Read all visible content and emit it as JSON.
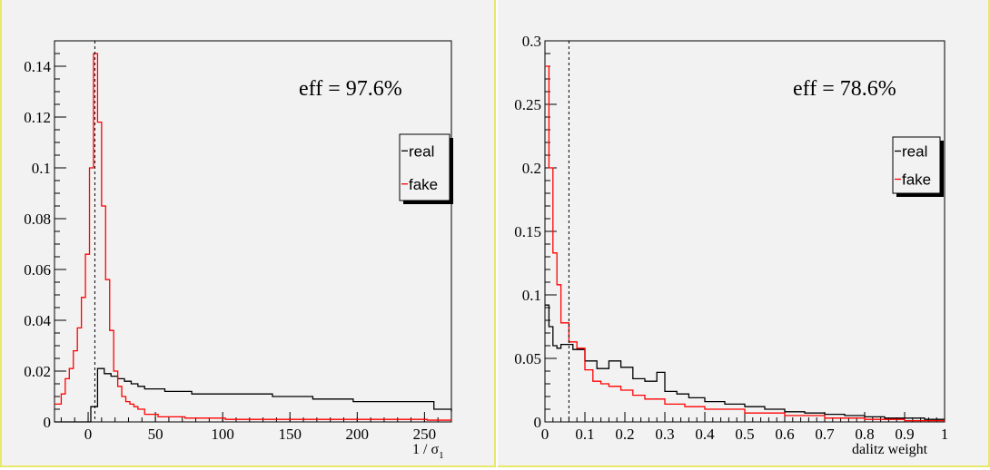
{
  "chart_data": [
    {
      "type": "line",
      "title": "",
      "xlabel": "1 / σ",
      "xlabel_subscript": "1",
      "ylabel": "",
      "xlim": [
        -25,
        270
      ],
      "ylim": [
        0,
        0.15
      ],
      "x_ticks": [
        0,
        50,
        100,
        150,
        200,
        250
      ],
      "x_tick_labels": [
        "0",
        "50",
        "100",
        "150",
        "200",
        "250"
      ],
      "y_ticks": [
        0,
        0.02,
        0.04,
        0.06,
        0.08,
        0.1,
        0.12,
        0.14
      ],
      "y_tick_labels": [
        "0",
        "0.02",
        "0.04",
        "0.06",
        "0.08",
        "0.1",
        "0.12",
        "0.14"
      ],
      "annotation": "eff = 97.6%",
      "cut_line": 5,
      "legend_position": "right",
      "legend": [
        "real",
        "fake"
      ],
      "grid": false,
      "series": [
        {
          "name": "real",
          "color": "#000000",
          "x": [
            -25,
            -2,
            2,
            7,
            12,
            17,
            22,
            27,
            32,
            37,
            42,
            47,
            57,
            77,
            107,
            137,
            167,
            197,
            227,
            257,
            262,
            270
          ],
          "values": [
            0,
            0,
            0.006,
            0.021,
            0.019,
            0.018,
            0.017,
            0.016,
            0.015,
            0.014,
            0.013,
            0.013,
            0.012,
            0.011,
            0.011,
            0.01,
            0.009,
            0.008,
            0.008,
            0.005,
            0.005,
            0.004
          ]
        },
        {
          "name": "fake",
          "color": "#ff0000",
          "x": [
            -25,
            -20,
            -17,
            -14,
            -11,
            -8,
            -5,
            -2,
            1,
            4,
            7,
            10,
            13,
            16,
            19,
            22,
            25,
            28,
            31,
            34,
            37,
            42,
            52,
            72,
            102,
            152,
            202,
            252,
            270
          ],
          "values": [
            0.007,
            0.011,
            0.017,
            0.021,
            0.028,
            0.037,
            0.049,
            0.066,
            0.1,
            0.145,
            0.118,
            0.085,
            0.056,
            0.036,
            0.02,
            0.014,
            0.01,
            0.008,
            0.007,
            0.006,
            0.005,
            0.003,
            0.002,
            0.0015,
            0.001,
            0.001,
            0.001,
            0.0007,
            0.0005
          ]
        }
      ]
    },
    {
      "type": "line",
      "title": "",
      "xlabel": "dalitz weight",
      "ylabel": "",
      "xlim": [
        0,
        1
      ],
      "ylim": [
        0,
        0.3
      ],
      "x_ticks": [
        0,
        0.1,
        0.2,
        0.3,
        0.4,
        0.5,
        0.6,
        0.7,
        0.8,
        0.9,
        1
      ],
      "x_tick_labels": [
        "0",
        "0.1",
        "0.2",
        "0.3",
        "0.4",
        "0.5",
        "0.6",
        "0.7",
        "0.8",
        "0.9",
        "1"
      ],
      "y_ticks": [
        0,
        0.05,
        0.1,
        0.15,
        0.2,
        0.25,
        0.3
      ],
      "y_tick_labels": [
        "0",
        "0.05",
        "0.1",
        "0.15",
        "0.2",
        "0.25",
        "0.3"
      ],
      "annotation": "eff = 78.6%",
      "cut_line": 0.06,
      "legend_position": "right",
      "legend": [
        "real",
        "fake"
      ],
      "grid": false,
      "series": [
        {
          "name": "real",
          "color": "#000000",
          "x": [
            0,
            0.01,
            0.02,
            0.03,
            0.04,
            0.05,
            0.07,
            0.1,
            0.13,
            0.16,
            0.19,
            0.22,
            0.25,
            0.28,
            0.3,
            0.33,
            0.36,
            0.4,
            0.45,
            0.5,
            0.55,
            0.6,
            0.65,
            0.7,
            0.75,
            0.8,
            0.85,
            0.9,
            0.95,
            1
          ],
          "values": [
            0.092,
            0.075,
            0.06,
            0.058,
            0.061,
            0.061,
            0.057,
            0.048,
            0.042,
            0.048,
            0.043,
            0.034,
            0.032,
            0.039,
            0.024,
            0.022,
            0.019,
            0.016,
            0.014,
            0.012,
            0.01,
            0.008,
            0.007,
            0.006,
            0.005,
            0.004,
            0.003,
            0.003,
            0.002,
            0.002
          ]
        },
        {
          "name": "fake",
          "color": "#ff0000",
          "x": [
            0,
            0.01,
            0.02,
            0.03,
            0.04,
            0.05,
            0.06,
            0.08,
            0.1,
            0.12,
            0.14,
            0.16,
            0.19,
            0.22,
            0.25,
            0.3,
            0.35,
            0.4,
            0.5,
            0.6,
            0.7,
            0.8,
            0.9,
            1
          ],
          "values": [
            0.28,
            0.2,
            0.133,
            0.108,
            0.078,
            0.078,
            0.063,
            0.058,
            0.041,
            0.032,
            0.03,
            0.028,
            0.025,
            0.021,
            0.018,
            0.014,
            0.012,
            0.01,
            0.007,
            0.005,
            0.003,
            0.002,
            0.001,
            0.001
          ]
        }
      ]
    }
  ]
}
